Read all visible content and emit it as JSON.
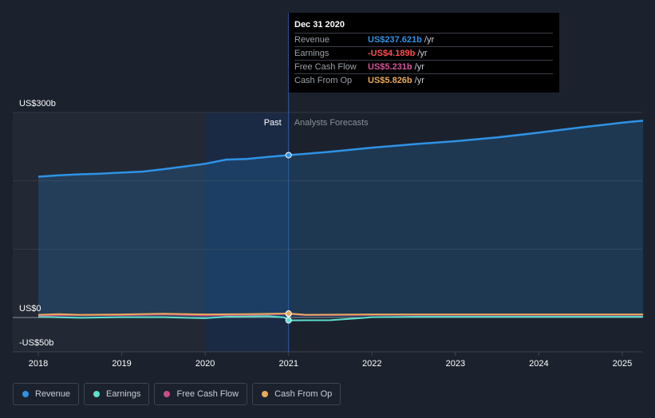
{
  "chart_data": {
    "type": "area",
    "x_ticks": [
      "2018",
      "2019",
      "2020",
      "2021",
      "2022",
      "2023",
      "2024",
      "2025"
    ],
    "y_ticks": [
      {
        "label": "US$300b",
        "value": 300
      },
      {
        "label": "US$0",
        "value": 0
      },
      {
        "label": "-US$50b",
        "value": -50
      }
    ],
    "ylim": [
      -50,
      300
    ],
    "past_label": "Past",
    "forecast_label": "Analysts Forecasts",
    "divider_x": 2021.0,
    "series": [
      {
        "name": "Revenue",
        "color": "#2e93e6",
        "area": true,
        "points": [
          [
            2018.0,
            206
          ],
          [
            2018.25,
            208
          ],
          [
            2018.5,
            209.5
          ],
          [
            2018.75,
            210.5
          ],
          [
            2019.0,
            212
          ],
          [
            2019.25,
            213.5
          ],
          [
            2019.5,
            217
          ],
          [
            2019.75,
            221
          ],
          [
            2020.0,
            225
          ],
          [
            2020.25,
            231
          ],
          [
            2020.5,
            232
          ],
          [
            2020.75,
            235
          ],
          [
            2021.0,
            237.6
          ],
          [
            2021.5,
            242.5
          ],
          [
            2022.0,
            248.5
          ],
          [
            2022.5,
            253.5
          ],
          [
            2023.0,
            258
          ],
          [
            2023.5,
            263.5
          ],
          [
            2024.0,
            270.5
          ],
          [
            2024.5,
            278
          ],
          [
            2025.0,
            285
          ],
          [
            2025.25,
            288
          ]
        ]
      },
      {
        "name": "Earnings",
        "color": "#5fe0cd",
        "area": false,
        "points": [
          [
            2018.0,
            1
          ],
          [
            2018.5,
            -0.5
          ],
          [
            2019.0,
            0.5
          ],
          [
            2019.5,
            0.5
          ],
          [
            2020.0,
            -1
          ],
          [
            2020.25,
            1
          ],
          [
            2020.5,
            1.5
          ],
          [
            2020.75,
            2
          ],
          [
            2020.95,
            0
          ],
          [
            2021.0,
            -4.2
          ],
          [
            2021.5,
            -4
          ],
          [
            2021.85,
            -1
          ],
          [
            2022.0,
            0.5
          ],
          [
            2022.5,
            1
          ],
          [
            2023.0,
            1
          ],
          [
            2024.0,
            1
          ],
          [
            2025.0,
            1
          ],
          [
            2025.25,
            1
          ]
        ]
      },
      {
        "name": "Free Cash Flow",
        "color": "#c94d8a",
        "area": false,
        "points": [
          [
            2018.0,
            3
          ],
          [
            2018.5,
            3.5
          ],
          [
            2019.0,
            3.5
          ],
          [
            2019.5,
            4.5
          ],
          [
            2020.0,
            3
          ],
          [
            2020.5,
            4
          ],
          [
            2021.0,
            5.2
          ],
          [
            2021.2,
            3.5
          ],
          [
            2022.0,
            3.8
          ],
          [
            2023.0,
            4
          ],
          [
            2024.0,
            4
          ],
          [
            2025.0,
            4
          ],
          [
            2025.25,
            4
          ]
        ]
      },
      {
        "name": "Cash From Op",
        "color": "#e8a95c",
        "area": false,
        "points": [
          [
            2018.0,
            4
          ],
          [
            2018.25,
            5
          ],
          [
            2018.5,
            4
          ],
          [
            2019.0,
            4.5
          ],
          [
            2019.5,
            5.5
          ],
          [
            2020.0,
            4.5
          ],
          [
            2020.5,
            5
          ],
          [
            2021.0,
            5.8
          ],
          [
            2021.2,
            4
          ],
          [
            2022.0,
            4.5
          ],
          [
            2023.0,
            4.5
          ],
          [
            2024.0,
            4.5
          ],
          [
            2025.0,
            4.5
          ],
          [
            2025.25,
            4.5
          ]
        ]
      }
    ]
  },
  "tooltip": {
    "date": "Dec 31 2020",
    "rows": [
      {
        "label": "Revenue",
        "value": "US$237.621b",
        "unit": "/yr",
        "color": "#2e93e6"
      },
      {
        "label": "Earnings",
        "value": "-US$4.189b",
        "unit": "/yr",
        "color": "#ff4d4d"
      },
      {
        "label": "Free Cash Flow",
        "value": "US$5.231b",
        "unit": "/yr",
        "color": "#d6559a"
      },
      {
        "label": "Cash From Op",
        "value": "US$5.826b",
        "unit": "/yr",
        "color": "#e8a95c"
      }
    ]
  },
  "legend": [
    {
      "label": "Revenue",
      "color": "#2e93e6"
    },
    {
      "label": "Earnings",
      "color": "#5fe0cd"
    },
    {
      "label": "Free Cash Flow",
      "color": "#c94d8a"
    },
    {
      "label": "Cash From Op",
      "color": "#e8a95c"
    }
  ]
}
